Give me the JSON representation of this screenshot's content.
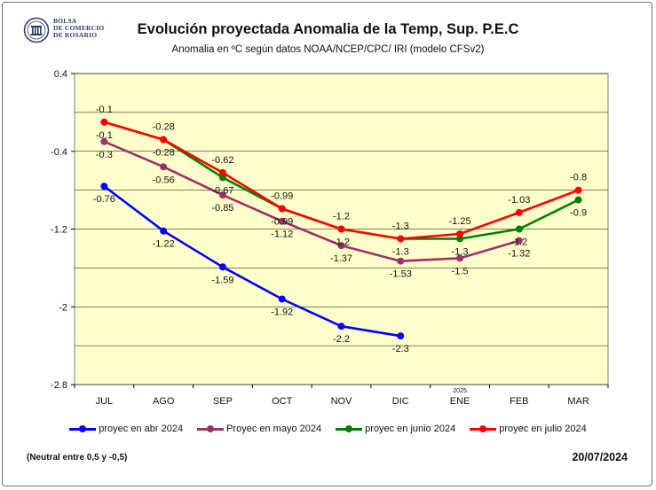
{
  "logo": {
    "line1": "BOLSA",
    "line2": "DE COMERCIO",
    "line3": "DE ROSARIO"
  },
  "chart_data": {
    "type": "line",
    "title": "Evolución proyectada Anomalia de la Temp, Sup.  P.E.C",
    "subtitle": "Anomalia en ºC según datos NOAA/NCEP/CPC/ IRI (modelo CFSv2)",
    "categories": [
      "JUL",
      "AGO",
      "SEP",
      "OCT",
      "NOV",
      "DIC",
      "ENE",
      "FEB",
      "MAR"
    ],
    "year_marker": {
      "category": "ENE",
      "label": "2025"
    },
    "ylim": [
      -2.8,
      0.4
    ],
    "yticks": [
      0.4,
      -0.4,
      -1.2,
      -2,
      -2.8
    ],
    "ytick_labels": [
      "0.4",
      "-0.4",
      "-1.2",
      "-2",
      "-2.8"
    ],
    "grid": true,
    "legend_position": "bottom",
    "series": [
      {
        "name": "proyec en abr 2024",
        "color": "#0000ff",
        "values": [
          -0.76,
          -1.22,
          -1.59,
          -1.92,
          -2.2,
          -2.3,
          null,
          null,
          null
        ],
        "labels": [
          "-0.76",
          "-1.22",
          "-1.59",
          "-1.92",
          "-2.2",
          "-2.3",
          null,
          null,
          null
        ]
      },
      {
        "name": "Proyec en mayo 2024",
        "color": "#993366",
        "values": [
          -0.3,
          -0.56,
          -0.85,
          -1.12,
          -1.37,
          -1.53,
          -1.5,
          -1.32,
          null
        ],
        "labels": [
          "-0.3",
          "-0.56",
          "-0.85",
          "-1.12",
          "-1.37",
          "-1.53",
          "-1.5",
          "-1.32",
          null
        ]
      },
      {
        "name": "proyec en  junio 2024",
        "color": "#008000",
        "values": [
          -0.1,
          -0.28,
          -0.67,
          -0.99,
          -1.2,
          -1.3,
          -1.3,
          -1.2,
          -0.9
        ],
        "labels": [
          "-0.1",
          "-0.28",
          "-0.67",
          "-0.99",
          "-1.2",
          "-1.3",
          "-1.3",
          "-1.2",
          "-0.9"
        ]
      },
      {
        "name": "proyec en julio 2024",
        "color": "#ff0000",
        "values": [
          -0.1,
          -0.28,
          -0.62,
          -0.99,
          -1.2,
          -1.3,
          -1.25,
          -1.03,
          -0.8
        ],
        "labels": [
          "-0.1",
          "-0.28",
          "-0.62",
          "-0.99",
          "-1.2",
          "-1.3",
          "-1.25",
          "-1.03",
          "-0.8"
        ]
      }
    ]
  },
  "footnote": "(Neutral entre 0,5 y -0,5)",
  "date": "20/07/2024"
}
